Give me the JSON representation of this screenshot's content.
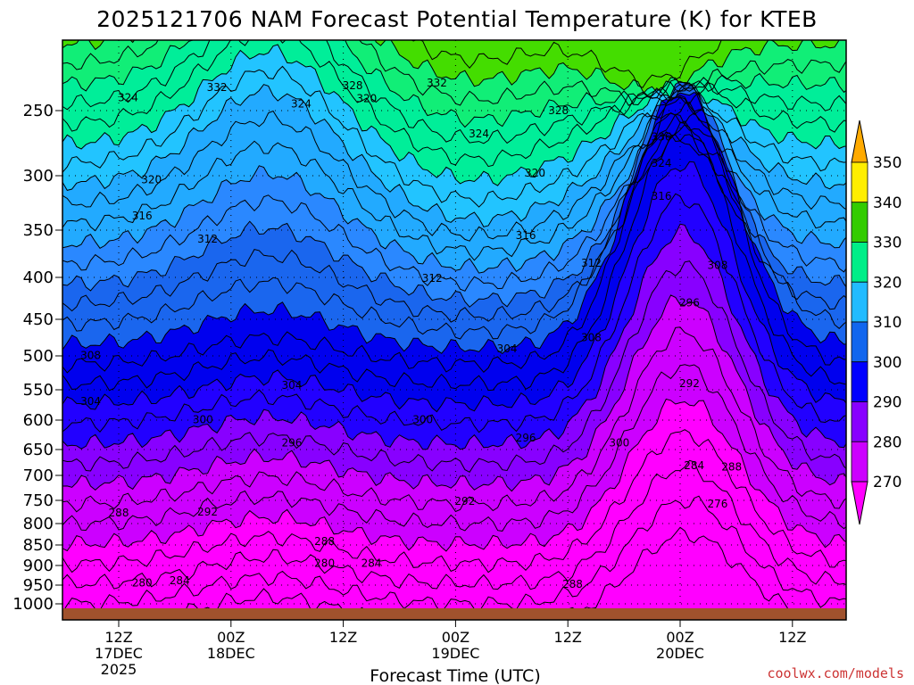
{
  "title": "2025121706 NAM Forecast Potential Temperature (K) for KTEB",
  "xlabel": "Forecast Time (UTC)",
  "credit": "coolwx.com/models",
  "colors": {
    "ground": "#a0522d",
    "bands": [
      "#ff00ff",
      "#cc00ff",
      "#8800ff",
      "#4400ff",
      "#0000ff",
      "#0044ee",
      "#1166ff",
      "#2288ff",
      "#22b2ff",
      "#22ccff",
      "#00ee99",
      "#22ee66",
      "#33dd00",
      "#88ee00",
      "#dddd00",
      "#ffee00",
      "#ffcc00",
      "#ffaa00"
    ]
  },
  "colorbar": {
    "labels": [
      "350",
      "340",
      "330",
      "320",
      "310",
      "300",
      "290",
      "280",
      "270"
    ],
    "colors": [
      "#ffaa00",
      "#ffee00",
      "#33cc00",
      "#00ee88",
      "#22bbff",
      "#1166ee",
      "#0000ff",
      "#0000cc",
      "#8800ff",
      "#cc00ff",
      "#ff00ff"
    ]
  },
  "chart_data": {
    "type": "contour",
    "title": "2025121706 NAM Forecast Potential Temperature (K) for KTEB",
    "xlabel": "Forecast Time (UTC)",
    "ylabel": "",
    "y_ticks": [
      "250",
      "300",
      "350",
      "400",
      "450",
      "500",
      "550",
      "600",
      "650",
      "700",
      "750",
      "800",
      "850",
      "900",
      "950",
      "1000"
    ],
    "y_range": [
      1010,
      200
    ],
    "x_ticks": [
      {
        "line1": "12Z",
        "line2": "17DEC",
        "line3": "2025"
      },
      {
        "line1": "00Z",
        "line2": "18DEC",
        "line3": ""
      },
      {
        "line1": "12Z",
        "line2": "",
        "line3": ""
      },
      {
        "line1": "00Z",
        "line2": "19DEC",
        "line3": ""
      },
      {
        "line1": "12Z",
        "line2": "",
        "line3": ""
      },
      {
        "line1": "00Z",
        "line2": "20DEC",
        "line3": ""
      },
      {
        "line1": "12Z",
        "line2": "",
        "line3": ""
      }
    ],
    "x_range_hours": [
      0,
      84
    ],
    "x_tick_hours": [
      6,
      18,
      30,
      42,
      54,
      66,
      78
    ],
    "contour_interval_K": 2,
    "shading_interval_K": 10,
    "levels_shown": [
      270,
      280,
      290,
      300,
      310,
      320,
      330,
      340,
      350
    ],
    "contour_labels": [
      {
        "v": "332",
        "t": 16.5,
        "p": 215
      },
      {
        "v": "328",
        "t": 31,
        "p": 212
      },
      {
        "v": "332",
        "t": 40,
        "p": 208
      },
      {
        "v": "324",
        "t": 7,
        "p": 230
      },
      {
        "v": "324",
        "t": 25.5,
        "p": 240
      },
      {
        "v": "320",
        "t": 32.5,
        "p": 232
      },
      {
        "v": "328",
        "t": 53,
        "p": 250
      },
      {
        "v": "324",
        "t": 44.5,
        "p": 285
      },
      {
        "v": "336",
        "t": 64,
        "p": 290
      },
      {
        "v": "324",
        "t": 64,
        "p": 330
      },
      {
        "v": "320",
        "t": 9.5,
        "p": 355
      },
      {
        "v": "320",
        "t": 50.5,
        "p": 345
      },
      {
        "v": "316",
        "t": 64,
        "p": 380
      },
      {
        "v": "316",
        "t": 8.5,
        "p": 410
      },
      {
        "v": "312",
        "t": 15.5,
        "p": 445
      },
      {
        "v": "316",
        "t": 49.5,
        "p": 440
      },
      {
        "v": "312",
        "t": 56.5,
        "p": 482
      },
      {
        "v": "308",
        "t": 70,
        "p": 485
      },
      {
        "v": "312",
        "t": 39.5,
        "p": 505
      },
      {
        "v": "296",
        "t": 67,
        "p": 542
      },
      {
        "v": "308",
        "t": 3,
        "p": 622
      },
      {
        "v": "304",
        "t": 47.5,
        "p": 612
      },
      {
        "v": "308",
        "t": 56.5,
        "p": 595
      },
      {
        "v": "304",
        "t": 24.5,
        "p": 668
      },
      {
        "v": "292",
        "t": 67,
        "p": 665
      },
      {
        "v": "304",
        "t": 3,
        "p": 692
      },
      {
        "v": "300",
        "t": 15,
        "p": 720
      },
      {
        "v": "300",
        "t": 38.5,
        "p": 720
      },
      {
        "v": "296",
        "t": 24.5,
        "p": 755
      },
      {
        "v": "296",
        "t": 49.5,
        "p": 748
      },
      {
        "v": "300",
        "t": 59.5,
        "p": 755
      },
      {
        "v": "284",
        "t": 67.5,
        "p": 790
      },
      {
        "v": "288",
        "t": 71.5,
        "p": 792
      },
      {
        "v": "292",
        "t": 43,
        "p": 844
      },
      {
        "v": "288",
        "t": 6,
        "p": 862
      },
      {
        "v": "292",
        "t": 15.5,
        "p": 860
      },
      {
        "v": "276",
        "t": 70,
        "p": 848
      },
      {
        "v": "288",
        "t": 28,
        "p": 905
      },
      {
        "v": "280",
        "t": 28,
        "p": 938
      },
      {
        "v": "284",
        "t": 33,
        "p": 938
      },
      {
        "v": "280",
        "t": 8.5,
        "p": 968
      },
      {
        "v": "284",
        "t": 12.5,
        "p": 965
      },
      {
        "v": "288",
        "t": 54.5,
        "p": 970
      }
    ]
  }
}
